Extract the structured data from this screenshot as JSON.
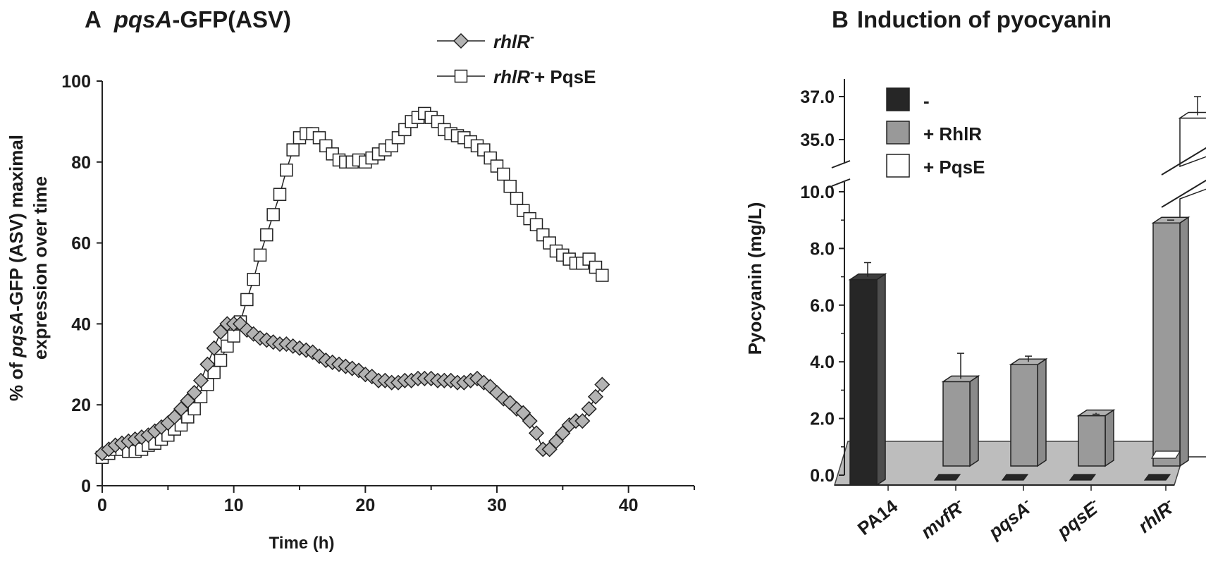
{
  "chart_data": [
    {
      "type": "line",
      "panel_letter": "A",
      "title_italic": "pqsA",
      "title_rest": "-GFP(ASV)",
      "ylabel_line1_pre": "% of ",
      "ylabel_line1_italic": "pqsA",
      "ylabel_line1_post": "-GFP (ASV) maximal",
      "ylabel_line2": "expression over time",
      "xlabel": "Time (h)",
      "xlim": [
        0,
        40
      ],
      "ylim": [
        0,
        100
      ],
      "x_ticks": [
        "0",
        "10",
        "20",
        "30",
        "40"
      ],
      "y_ticks": [
        "0",
        "20",
        "40",
        "60",
        "80",
        "100"
      ],
      "legend_placement": "top-center",
      "series": [
        {
          "legend_italic": "rhlR",
          "legend_sup": "-",
          "legend_rest": "",
          "marker": "diamond",
          "color": "#b3b3b3",
          "x": [
            0,
            0.5,
            1,
            1.5,
            2,
            2.5,
            3,
            3.5,
            4,
            4.5,
            5,
            5.5,
            6,
            6.5,
            7,
            7.5,
            8,
            8.5,
            9,
            9.5,
            10,
            10.5,
            11,
            11.5,
            12,
            12.5,
            13,
            13.5,
            14,
            14.5,
            15,
            15.5,
            16,
            16.5,
            17,
            17.5,
            18,
            18.5,
            19,
            19.5,
            20,
            20.5,
            21,
            21.5,
            22,
            22.5,
            23,
            23.5,
            24,
            24.5,
            25,
            25.5,
            26,
            26.5,
            27,
            27.5,
            28,
            28.5,
            29,
            29.5,
            30,
            30.5,
            31,
            31.5,
            32,
            32.5,
            33,
            33.5,
            34,
            34.5,
            35,
            35.5,
            36,
            36.5,
            37,
            37.5,
            38
          ],
          "y": [
            8,
            9,
            10,
            10.5,
            11,
            11.5,
            12,
            12.5,
            13.5,
            14.5,
            15.5,
            17,
            19,
            21,
            23,
            26,
            30,
            34,
            38,
            40,
            40,
            40,
            38.5,
            37.5,
            36.5,
            36,
            35.5,
            35,
            35,
            34.5,
            34,
            33.5,
            33,
            32,
            31,
            30.5,
            30,
            29.5,
            29,
            28.5,
            27.5,
            27,
            26,
            26,
            25.5,
            25.5,
            26,
            26,
            26.5,
            26.5,
            26.5,
            26,
            26,
            26,
            25.5,
            25.5,
            26,
            26.5,
            25.5,
            24.5,
            23,
            21.5,
            20.5,
            19,
            18,
            16,
            13,
            9,
            9,
            11,
            13,
            15,
            16,
            16,
            19,
            22,
            25
          ]
        },
        {
          "legend_italic": "rhlR",
          "legend_sup": "-",
          "legend_rest": "+ PqsE",
          "marker": "square",
          "color": "#ffffff",
          "x": [
            0,
            0.5,
            1,
            1.5,
            2,
            2.5,
            3,
            3.5,
            4,
            4.5,
            5,
            5.5,
            6,
            6.5,
            7,
            7.5,
            8,
            8.5,
            9,
            9.5,
            10,
            10.5,
            11,
            11.5,
            12,
            12.5,
            13,
            13.5,
            14,
            14.5,
            15,
            15.5,
            16,
            16.5,
            17,
            17.5,
            18,
            18.5,
            19,
            19.5,
            20,
            20.5,
            21,
            21.5,
            22,
            22.5,
            23,
            23.5,
            24,
            24.5,
            25,
            25.5,
            26,
            26.5,
            27,
            27.5,
            28,
            28.5,
            29,
            29.5,
            30,
            30.5,
            31,
            31.5,
            32,
            32.5,
            33,
            33.5,
            34,
            34.5,
            35,
            35.5,
            36,
            36.5,
            37,
            37.5,
            38
          ],
          "y": [
            7,
            8,
            9,
            9,
            8.5,
            8.5,
            9,
            10,
            10.5,
            11.5,
            12.5,
            14,
            15,
            17,
            19,
            22,
            25,
            28,
            31,
            34.5,
            37,
            40.5,
            46,
            51,
            57,
            62,
            67,
            72,
            78,
            83,
            86,
            87,
            87,
            86,
            84,
            82,
            80.5,
            80,
            80,
            80.5,
            80,
            81,
            82,
            83,
            84,
            86,
            88,
            90,
            91,
            92,
            91,
            90,
            88,
            87,
            86.5,
            86,
            85,
            84,
            83,
            81,
            79,
            77,
            74,
            71,
            68,
            66,
            64.5,
            62,
            60,
            58,
            57,
            56,
            55,
            55,
            56,
            54,
            52
          ]
        }
      ]
    },
    {
      "type": "bar",
      "panel_letter": "B",
      "title": "Induction of pyocyanin",
      "ylabel": "Pyocyanin (mg/L)",
      "ylim": [
        0,
        37.5
      ],
      "axis_break": [
        10.3,
        34.5
      ],
      "y_ticks": [
        "0.0",
        "2.0",
        "4.0",
        "6.0",
        "8.0",
        "10.0",
        "35.0",
        "37.0"
      ],
      "categories": [
        {
          "italic": "",
          "label": "PA14",
          "sup": ""
        },
        {
          "italic": "mvfR",
          "label": "",
          "sup": "-"
        },
        {
          "italic": "pqsA",
          "label": "",
          "sup": "-"
        },
        {
          "italic": "pqsE",
          "label": "",
          "sup": "-"
        },
        {
          "italic": "rhlR",
          "label": "",
          "sup": "-"
        }
      ],
      "legend_placement": "top-left",
      "series": [
        {
          "name": "-",
          "color": "#262626",
          "values": [
            6.9,
            0,
            0,
            0,
            0
          ],
          "errors": [
            0.6,
            0,
            0,
            0,
            0
          ]
        },
        {
          "name": "+ RhlR",
          "color": "#999999",
          "values": [
            null,
            3.3,
            3.9,
            2.1,
            8.9
          ],
          "errors": [
            null,
            1.0,
            0.3,
            0.05,
            0.1
          ]
        },
        {
          "name": "+ PqsE",
          "color": "#ffffff",
          "values": [
            null,
            null,
            null,
            null,
            36.0
          ],
          "errors": [
            null,
            null,
            null,
            null,
            1.0
          ]
        }
      ]
    }
  ]
}
